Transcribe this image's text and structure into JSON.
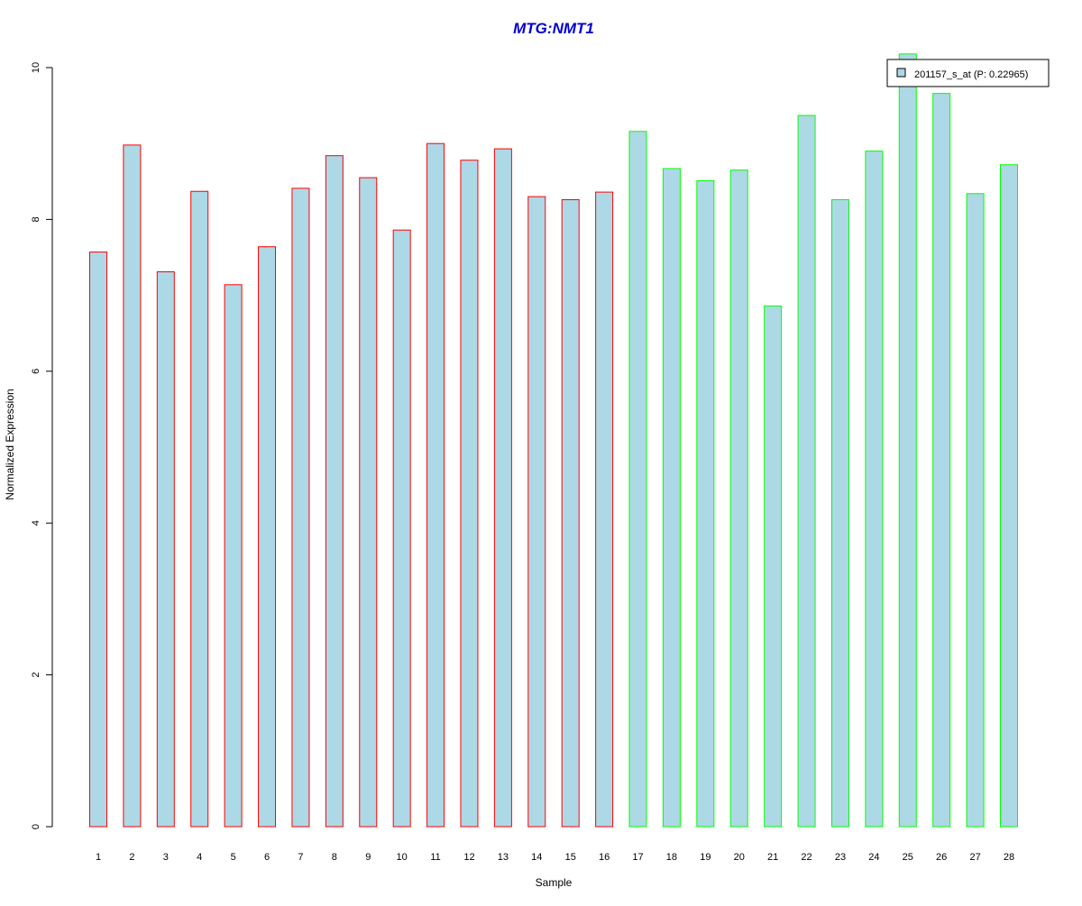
{
  "chart_data": {
    "type": "bar",
    "title": "MTG:NMT1",
    "xlabel": "Sample",
    "ylabel": "Normalized Expression",
    "ylim": [
      0,
      10
    ],
    "yticks": [
      "0",
      "2",
      "4",
      "6",
      "8",
      "10"
    ],
    "categories": [
      "1",
      "2",
      "3",
      "4",
      "5",
      "6",
      "7",
      "8",
      "9",
      "10",
      "11",
      "12",
      "13",
      "14",
      "15",
      "16",
      "17",
      "18",
      "19",
      "20",
      "21",
      "22",
      "23",
      "24",
      "25",
      "26",
      "27",
      "28"
    ],
    "values": [
      7.57,
      8.98,
      7.31,
      8.37,
      7.14,
      7.64,
      8.41,
      8.84,
      8.55,
      7.86,
      9.0,
      8.78,
      8.93,
      8.3,
      8.26,
      8.36,
      9.16,
      8.67,
      8.51,
      8.65,
      6.86,
      9.37,
      8.26,
      8.9,
      10.18,
      9.66,
      8.34,
      8.72
    ],
    "group_of_sample": [
      "a",
      "a",
      "a",
      "a",
      "a",
      "a",
      "a",
      "a",
      "a",
      "a",
      "a",
      "a",
      "a",
      "a",
      "a",
      "a",
      "b",
      "b",
      "b",
      "b",
      "b",
      "b",
      "b",
      "b",
      "b",
      "b",
      "b",
      "b"
    ],
    "grid": false,
    "legend": {
      "position": "top-right",
      "entries": [
        "201157_s_at (P: 0.22965)"
      ]
    },
    "colors": {
      "fill": "#add8e6",
      "border_group_a": "#ff0000",
      "border_group_b": "#00ff00",
      "title": "#0000cd",
      "axis": "#000000"
    }
  }
}
